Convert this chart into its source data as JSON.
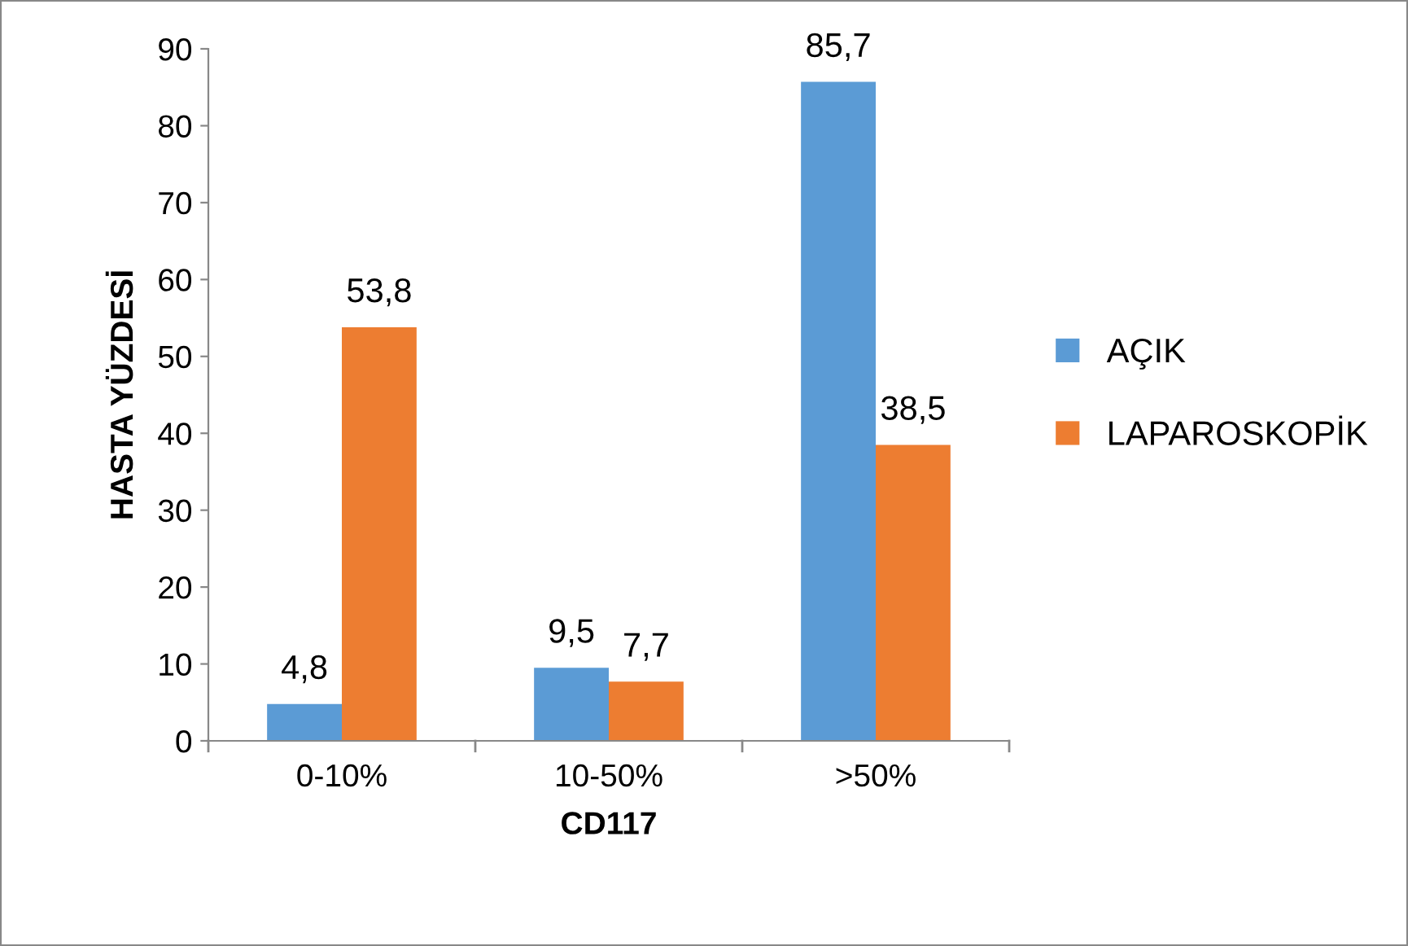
{
  "chart_data": {
    "type": "bar",
    "xlabel": "CD117",
    "ylabel": "HASTA YÜZDESİ",
    "categories": [
      "0-10%",
      "10-50%",
      ">50%"
    ],
    "series": [
      {
        "name": "AÇIK",
        "color": "#5b9bd5",
        "values": [
          4.8,
          9.5,
          85.7
        ],
        "value_labels": [
          "4,8",
          "9,5",
          "85,7"
        ]
      },
      {
        "name": "LAPAROSKOPİK",
        "color": "#ed7d31",
        "values": [
          53.8,
          7.7,
          38.5
        ],
        "value_labels": [
          "53,8",
          "7,7",
          "38,5"
        ]
      }
    ],
    "ylim": [
      0,
      90
    ],
    "yticks": [
      0,
      10,
      20,
      30,
      40,
      50,
      60,
      70,
      80,
      90
    ],
    "grid": false,
    "legend": "right"
  }
}
